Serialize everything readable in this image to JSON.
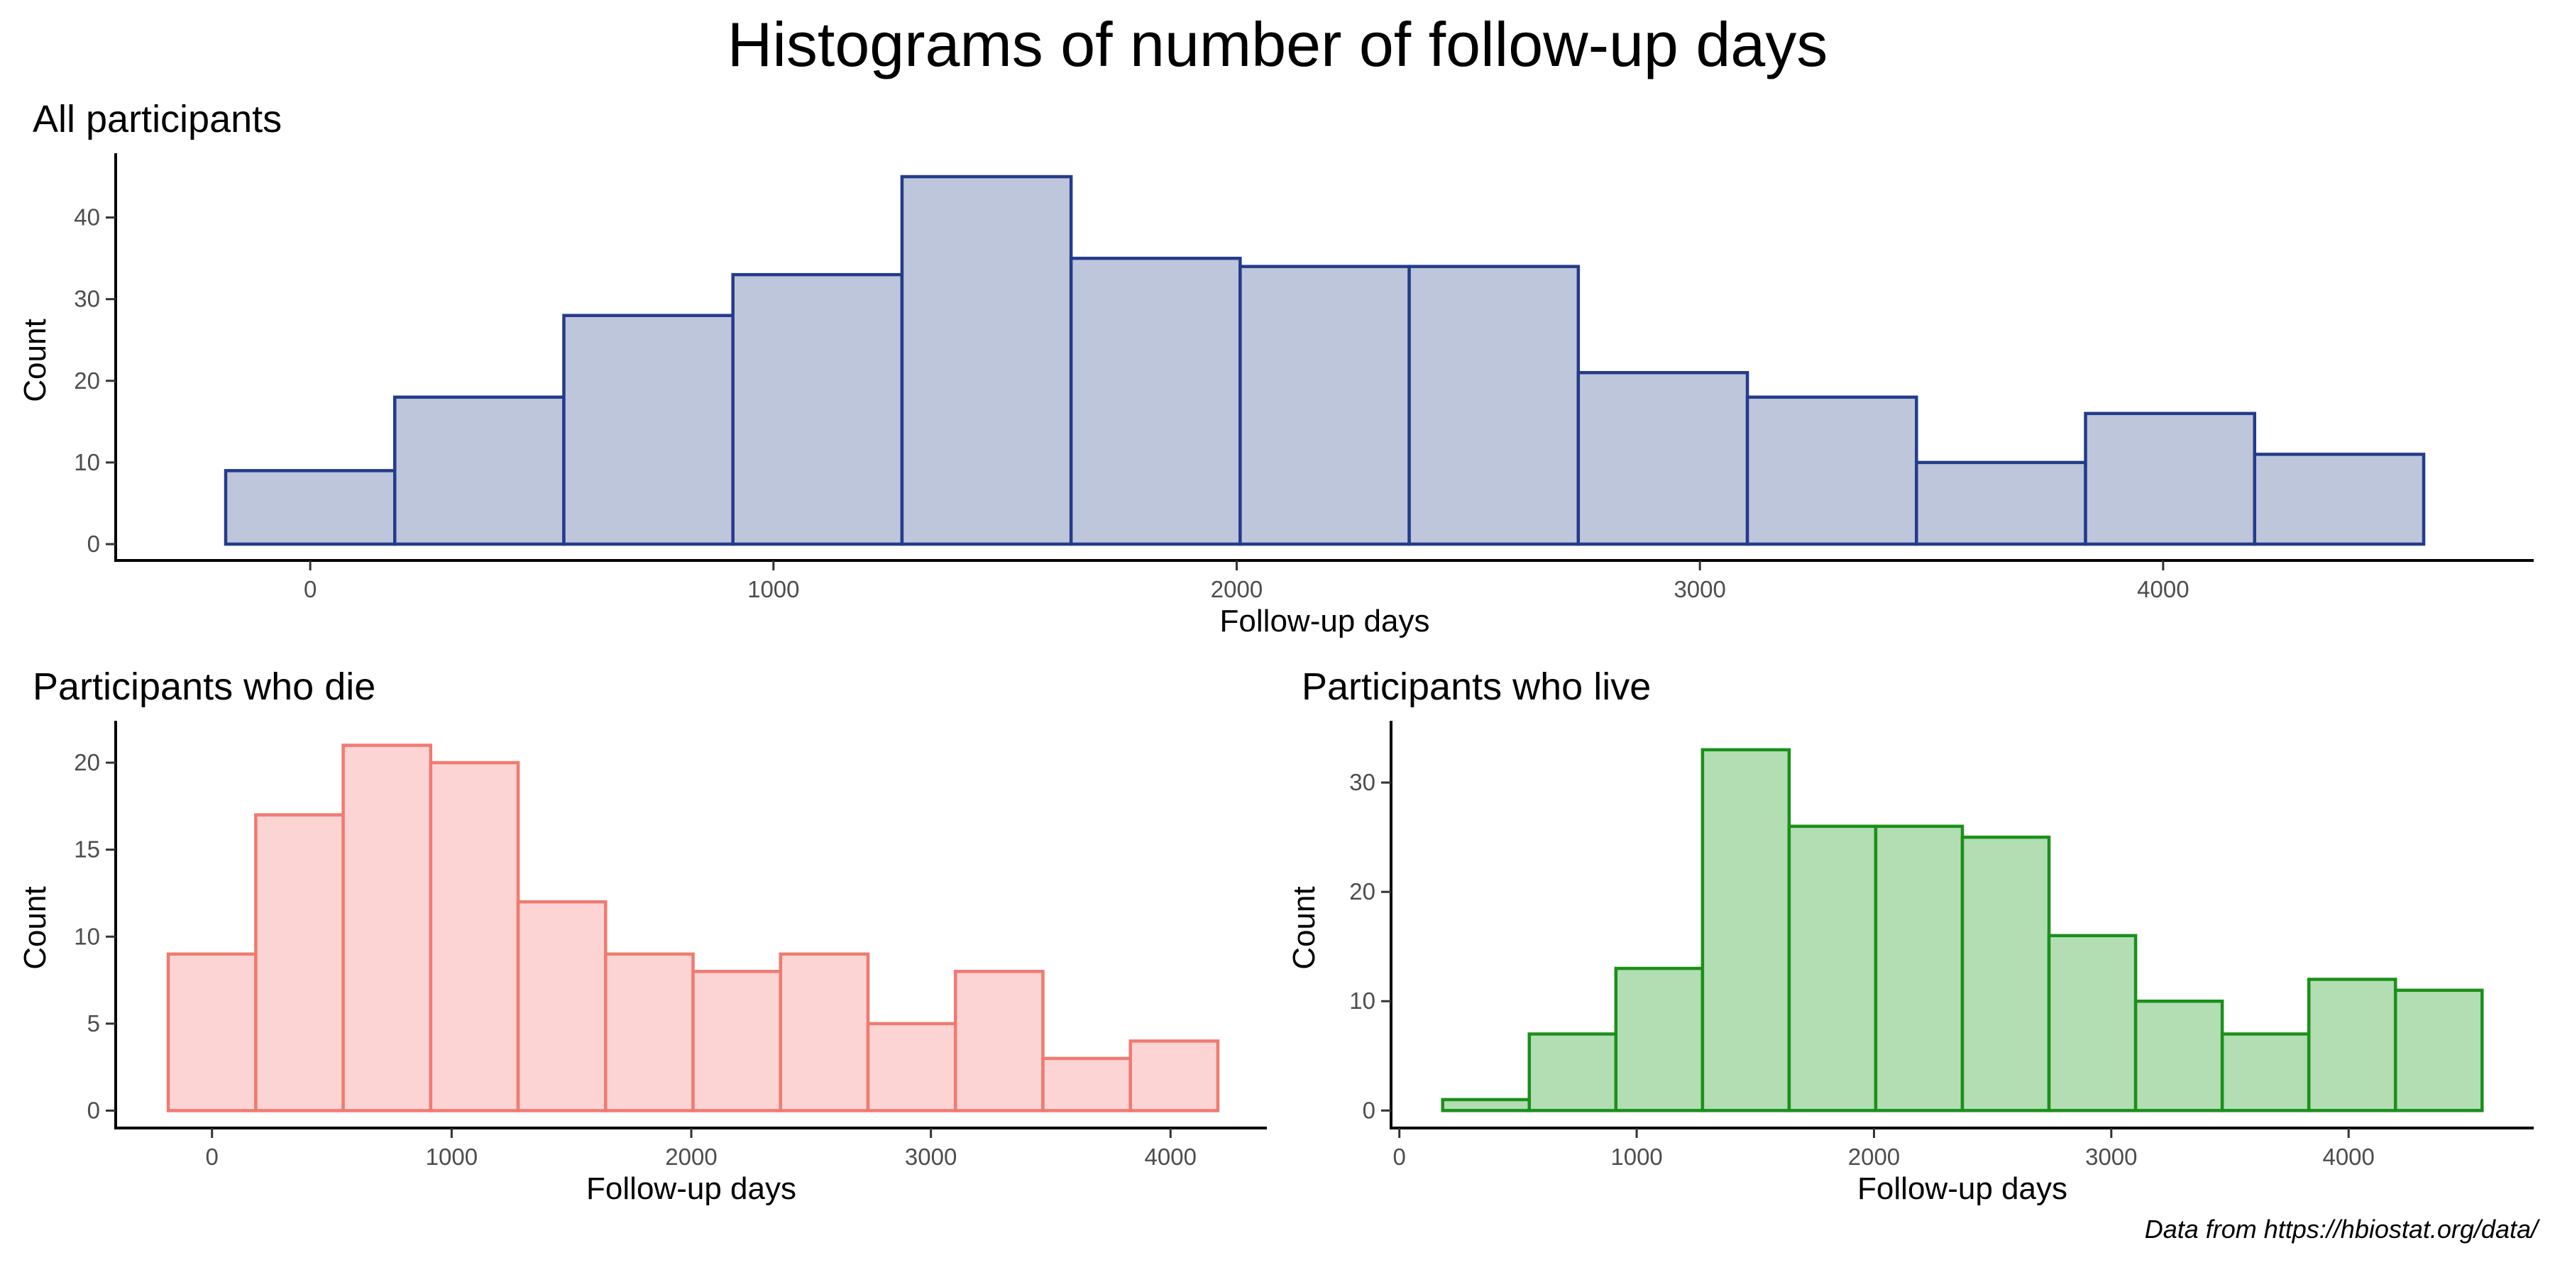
{
  "title": "Histograms of number of follow-up days",
  "caption": "Data from https://hbiostat.org/data/",
  "colors": {
    "all": {
      "fill": "#bec6dc",
      "stroke": "#253b8a"
    },
    "die": {
      "fill": "#fdd4d4",
      "stroke": "#f07a70"
    },
    "live": {
      "fill": "#b3ddb3",
      "stroke": "#1a901a"
    }
  },
  "chart_data": [
    {
      "id": "all",
      "type": "bar",
      "title": "All participants",
      "xlabel": "Follow-up days",
      "ylabel": "Count",
      "bin_width": 365,
      "bin_start": -182.5,
      "values": [
        9,
        18,
        28,
        33,
        45,
        35,
        34,
        34,
        21,
        18,
        10,
        16,
        11
      ],
      "xlim": [
        -420,
        4800
      ],
      "ylim": [
        -2,
        47
      ],
      "xticks": [
        0,
        1000,
        2000,
        3000,
        4000
      ],
      "yticks": [
        0,
        10,
        20,
        30,
        40
      ],
      "grid": false
    },
    {
      "id": "die",
      "type": "bar",
      "title": "Participants who die",
      "xlabel": "Follow-up days",
      "ylabel": "Count",
      "bin_width": 365,
      "bin_start": -182.5,
      "values": [
        9,
        17,
        21,
        20,
        12,
        9,
        8,
        9,
        5,
        8,
        3,
        4
      ],
      "xlim": [
        -402,
        4402
      ],
      "ylim": [
        -1,
        22
      ],
      "xticks": [
        0,
        1000,
        2000,
        3000,
        4000
      ],
      "yticks": [
        0,
        5,
        10,
        15,
        20
      ],
      "grid": false
    },
    {
      "id": "live",
      "type": "bar",
      "title": "Participants who live",
      "xlabel": "Follow-up days",
      "ylabel": "Count",
      "bin_width": 365,
      "bin_start": 182.5,
      "values": [
        1,
        7,
        13,
        33,
        26,
        26,
        25,
        16,
        10,
        7,
        12,
        11
      ],
      "xlim": [
        -35,
        4780
      ],
      "ylim": [
        -1.6,
        35
      ],
      "xticks": [
        0,
        1000,
        2000,
        3000,
        4000
      ],
      "yticks": [
        0,
        10,
        20,
        30
      ],
      "grid": false
    }
  ]
}
